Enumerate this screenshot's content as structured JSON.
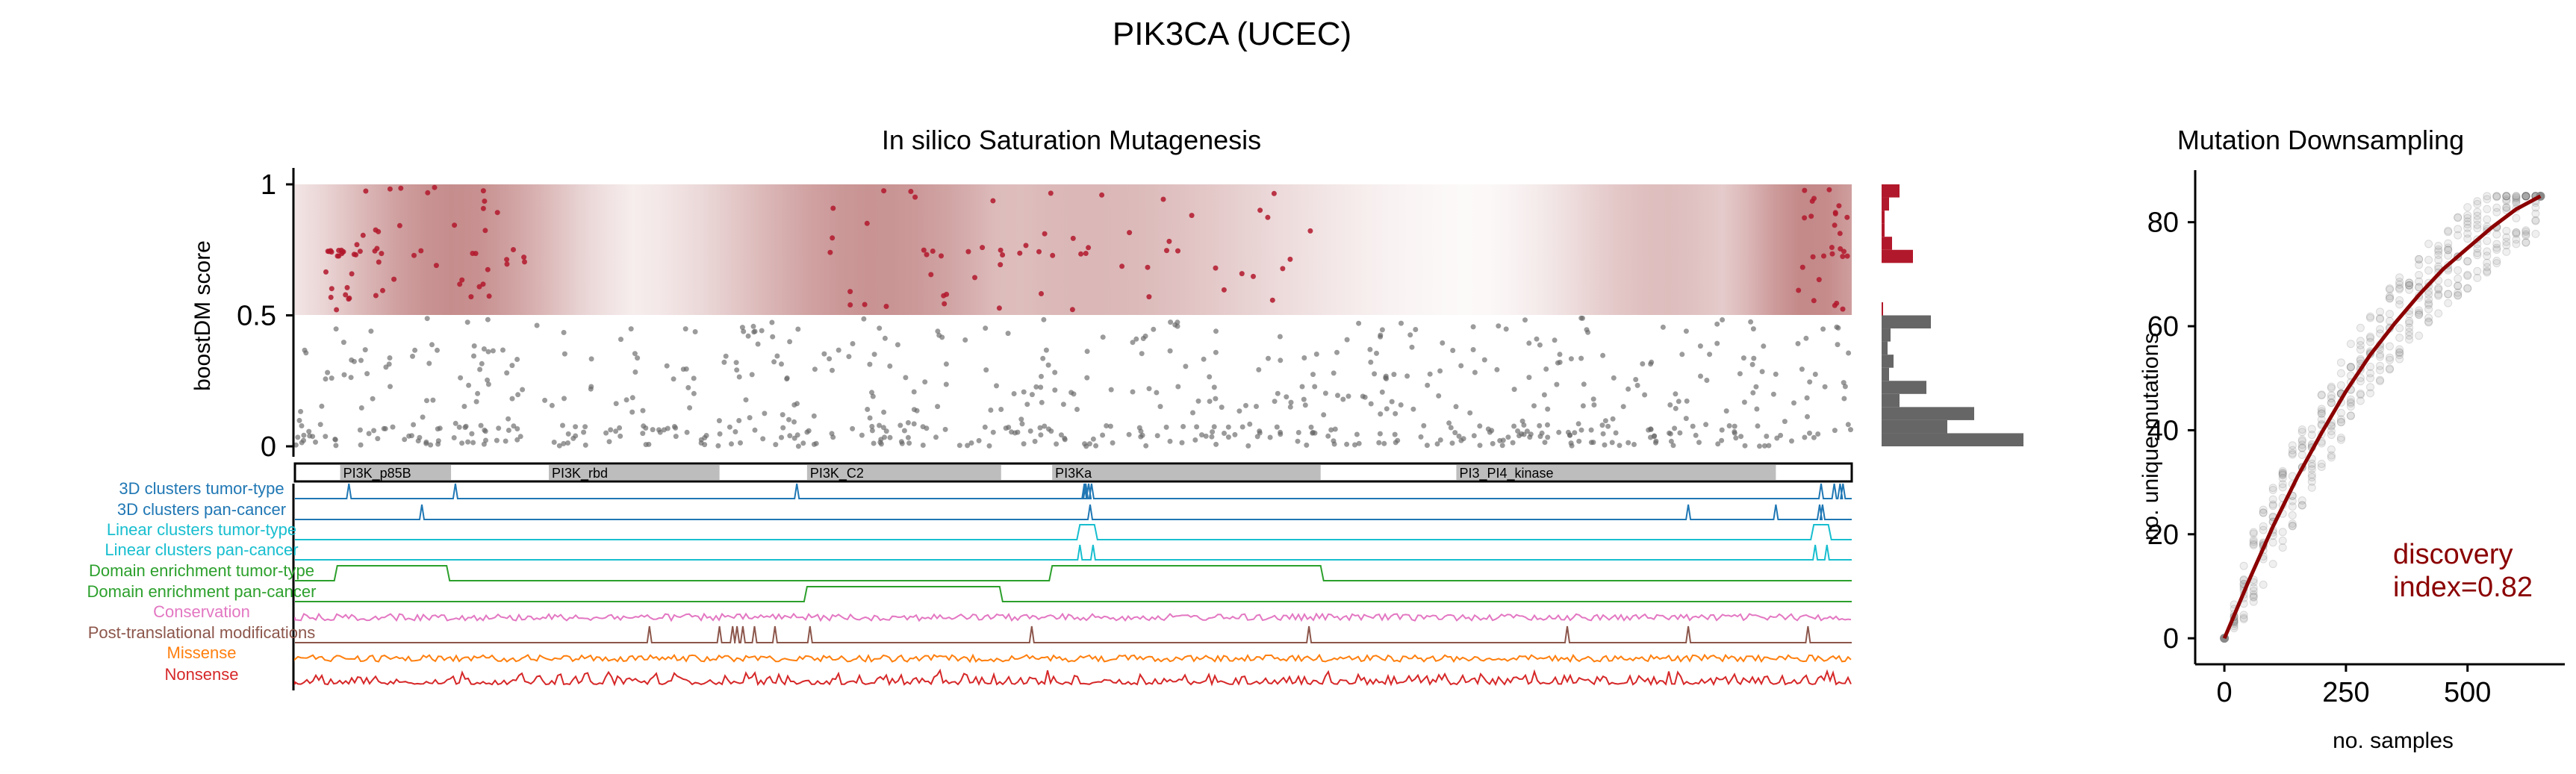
{
  "figure_title": "PIK3CA (UCEC)",
  "colors": {
    "missense": "#ff7f0e",
    "nonsense": "#d62728",
    "driver": "#b2182b",
    "passenger": "#666666",
    "downsample": "#8b0000",
    "ptm": "#8c564b",
    "conservation": "#e377c2",
    "domain_enrichment": "#2ca02c",
    "linear_clusters": "#17becf",
    "clusters_3d": "#1f77b4"
  },
  "chart_data": [
    {
      "type": "scatter",
      "title": "In silico Saturation Mutagenesis",
      "ylabel": "boostDM score",
      "xlim": [
        1,
        1068
      ],
      "ylim": [
        0,
        1
      ],
      "yticks": [
        0,
        0.5,
        1
      ],
      "ytick_labels": [
        "0",
        "0.5",
        "1"
      ],
      "driver_threshold": 0.5,
      "driver_band_peaks": [
        {
          "center": 110,
          "width": 90,
          "intensity": 0.95
        },
        {
          "center": 380,
          "width": 60,
          "intensity": 0.75
        },
        {
          "center": 400,
          "width": 120,
          "intensity": 0.9
        },
        {
          "center": 545,
          "width": 160,
          "intensity": 0.6
        },
        {
          "center": 940,
          "width": 80,
          "intensity": 0.55
        },
        {
          "center": 1040,
          "width": 60,
          "intensity": 1.0
        }
      ],
      "driver_points_approx": 150,
      "passenger_points_approx": 700
    },
    {
      "type": "bar",
      "orientation": "horizontal",
      "note": "Marginal histogram of boostDM scores",
      "bins": [
        0.95,
        0.9,
        0.85,
        0.8,
        0.75,
        0.7,
        0.65,
        0.6,
        0.55,
        0.5,
        0.45,
        0.4,
        0.35,
        0.3,
        0.25,
        0.2,
        0.15,
        0.1,
        0.05,
        0.0
      ],
      "values": [
        12,
        5,
        2,
        2,
        7,
        21,
        0,
        0,
        0,
        1,
        33,
        6,
        4,
        8,
        5,
        30,
        12,
        62,
        44,
        95
      ],
      "driver_bins_min": 0.5
    },
    {
      "type": "line",
      "title": "Mutation Downsampling",
      "xlabel": "no. samples",
      "ylabel": "no. unique mutations",
      "xlim": [
        -60,
        700
      ],
      "ylim": [
        -5,
        90
      ],
      "xticks": [
        0,
        250,
        500
      ],
      "yticks": [
        0,
        20,
        40,
        60,
        80
      ],
      "x_max_samples": 650,
      "y_max_mutations": 85,
      "annotation": "discovery\nindex=0.82",
      "discovery_index": 0.82,
      "fit_curve": [
        [
          0,
          0
        ],
        [
          50,
          11
        ],
        [
          100,
          21.5
        ],
        [
          150,
          31
        ],
        [
          200,
          39.5
        ],
        [
          250,
          47.5
        ],
        [
          300,
          54.5
        ],
        [
          350,
          60.5
        ],
        [
          400,
          66
        ],
        [
          450,
          71
        ],
        [
          500,
          75
        ],
        [
          550,
          79
        ],
        [
          600,
          82.5
        ],
        [
          650,
          85
        ]
      ]
    }
  ],
  "protein": {
    "length": 1068,
    "domains": [
      {
        "name": "PI3K_p85B",
        "start": 32,
        "end": 108
      },
      {
        "name": "PI3K_rbd",
        "start": 175,
        "end": 292
      },
      {
        "name": "PI3K_C2",
        "start": 352,
        "end": 485
      },
      {
        "name": "PI3Ka",
        "start": 520,
        "end": 704
      },
      {
        "name": "PI3_PI4_kinase",
        "start": 797,
        "end": 1016
      }
    ],
    "tracks": [
      {
        "label": "3D clusters tumor-type",
        "color": "#1f77b4",
        "kind": "peaks",
        "positions": [
          38,
          111,
          345,
          542,
          543,
          545,
          547,
          1047,
          1056,
          1060,
          1062
        ]
      },
      {
        "label": "3D clusters pan-cancer",
        "color": "#1f77b4",
        "kind": "peaks",
        "positions": [
          88,
          546,
          956,
          1016,
          1046,
          1048
        ]
      },
      {
        "label": "Linear clusters tumor-type",
        "color": "#17becf",
        "kind": "box",
        "ranges": [
          [
            539,
            549
          ],
          [
            1042,
            1052
          ]
        ]
      },
      {
        "label": "Linear clusters pan-cancer",
        "color": "#17becf",
        "kind": "peaks",
        "positions": [
          539,
          548,
          1043,
          1051
        ]
      },
      {
        "label": "Domain enrichment tumor-type",
        "color": "#2ca02c",
        "kind": "box",
        "ranges": [
          [
            30,
            105
          ],
          [
            520,
            704
          ]
        ]
      },
      {
        "label": "Domain enrichment pan-cancer",
        "color": "#2ca02c",
        "kind": "box",
        "ranges": [
          [
            352,
            484
          ]
        ]
      },
      {
        "label": "Conservation",
        "color": "#e377c2",
        "kind": "noise"
      },
      {
        "label": "Post-translational modifications",
        "color": "#8c564b",
        "kind": "peaks",
        "positions": [
          244,
          292,
          301,
          304,
          308,
          316,
          330,
          354,
          506,
          696,
          873,
          956,
          1038
        ]
      },
      {
        "label": "Missense",
        "color": "#ff7f0e",
        "kind": "noise"
      },
      {
        "label": "Nonsense",
        "color": "#d62728",
        "kind": "spiky"
      }
    ]
  }
}
